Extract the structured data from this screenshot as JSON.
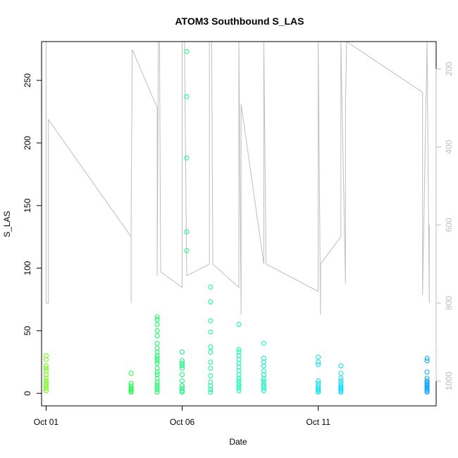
{
  "chart_data": {
    "type": "scatter",
    "title": "ATOM3 Southbound S_LAS",
    "xlabel": "Date",
    "ylabel": "S_LAS",
    "x_axis": {
      "type": "date",
      "range": [
        "2013-09-30T20:00",
        "2013-10-15T08:00"
      ],
      "ticks": [
        {
          "value": "2013-10-01",
          "label": "Oct 01"
        },
        {
          "value": "2013-10-06",
          "label": "Oct 06"
        },
        {
          "value": "2013-10-11",
          "label": "Oct 11"
        }
      ]
    },
    "y_axis": {
      "range": [
        -10,
        281
      ],
      "ticks": [
        0,
        50,
        100,
        150,
        200,
        250
      ]
    },
    "y2_axis": {
      "reversed": true,
      "range": [
        1063.5,
        130
      ],
      "ticks": [
        200,
        400,
        600,
        800,
        1000
      ],
      "color": "#bebebe"
    },
    "point_color_scale": [
      "#66ff00",
      "#00ff44",
      "#00ffaa",
      "#00ddff",
      "#0099ff"
    ],
    "grid": false,
    "legend": "none",
    "series": [
      {
        "kind": "points",
        "points": [
          {
            "x": "2013-10-01T00:00",
            "y": 30
          },
          {
            "x": "2013-10-01T00:00",
            "y": 27
          },
          {
            "x": "2013-10-01T00:00",
            "y": 22
          },
          {
            "x": "2013-10-01T00:00",
            "y": 20
          },
          {
            "x": "2013-10-01T00:00",
            "y": 18
          },
          {
            "x": "2013-10-01T00:00",
            "y": 15
          },
          {
            "x": "2013-10-01T00:00",
            "y": 12
          },
          {
            "x": "2013-10-01T00:00",
            "y": 10
          },
          {
            "x": "2013-10-01T00:00",
            "y": 8
          },
          {
            "x": "2013-10-01T00:00",
            "y": 6
          },
          {
            "x": "2013-10-01T00:00",
            "y": 4
          },
          {
            "x": "2013-10-01T00:00",
            "y": 2
          },
          {
            "x": "2013-10-04T03:00",
            "y": 16
          },
          {
            "x": "2013-10-04T03:00",
            "y": 8
          },
          {
            "x": "2013-10-04T03:00",
            "y": 6
          },
          {
            "x": "2013-10-04T03:00",
            "y": 4
          },
          {
            "x": "2013-10-04T03:00",
            "y": 3
          },
          {
            "x": "2013-10-04T03:00",
            "y": 2
          },
          {
            "x": "2013-10-04T03:00",
            "y": 1
          },
          {
            "x": "2013-10-05T02:00",
            "y": 61
          },
          {
            "x": "2013-10-05T02:00",
            "y": 59
          },
          {
            "x": "2013-10-05T02:00",
            "y": 55
          },
          {
            "x": "2013-10-05T02:00",
            "y": 50
          },
          {
            "x": "2013-10-05T02:00",
            "y": 46
          },
          {
            "x": "2013-10-05T02:00",
            "y": 40
          },
          {
            "x": "2013-10-05T02:00",
            "y": 36
          },
          {
            "x": "2013-10-05T02:00",
            "y": 33
          },
          {
            "x": "2013-10-05T02:00",
            "y": 30
          },
          {
            "x": "2013-10-05T02:00",
            "y": 28
          },
          {
            "x": "2013-10-05T02:00",
            "y": 26
          },
          {
            "x": "2013-10-05T02:00",
            "y": 24
          },
          {
            "x": "2013-10-05T02:00",
            "y": 20
          },
          {
            "x": "2013-10-05T02:00",
            "y": 17
          },
          {
            "x": "2013-10-05T02:00",
            "y": 15
          },
          {
            "x": "2013-10-05T02:00",
            "y": 12
          },
          {
            "x": "2013-10-05T02:00",
            "y": 9
          },
          {
            "x": "2013-10-05T02:00",
            "y": 7
          },
          {
            "x": "2013-10-05T02:00",
            "y": 5
          },
          {
            "x": "2013-10-05T02:00",
            "y": 3
          },
          {
            "x": "2013-10-05T02:00",
            "y": 1
          },
          {
            "x": "2013-10-06T00:00",
            "y": 33
          },
          {
            "x": "2013-10-06T00:00",
            "y": 26
          },
          {
            "x": "2013-10-06T00:00",
            "y": 24
          },
          {
            "x": "2013-10-06T00:00",
            "y": 22
          },
          {
            "x": "2013-10-06T00:00",
            "y": 20
          },
          {
            "x": "2013-10-06T00:00",
            "y": 15
          },
          {
            "x": "2013-10-06T00:00",
            "y": 10
          },
          {
            "x": "2013-10-06T00:00",
            "y": 6
          },
          {
            "x": "2013-10-06T00:00",
            "y": 4
          },
          {
            "x": "2013-10-06T00:00",
            "y": 2
          },
          {
            "x": "2013-10-06T00:00",
            "y": 1
          },
          {
            "x": "2013-10-06T04:00",
            "y": 273
          },
          {
            "x": "2013-10-06T04:00",
            "y": 237
          },
          {
            "x": "2013-10-06T04:00",
            "y": 188
          },
          {
            "x": "2013-10-06T04:00",
            "y": 129
          },
          {
            "x": "2013-10-06T04:00",
            "y": 114
          },
          {
            "x": "2013-10-07T01:00",
            "y": 85
          },
          {
            "x": "2013-10-07T01:00",
            "y": 73
          },
          {
            "x": "2013-10-07T01:00",
            "y": 58
          },
          {
            "x": "2013-10-07T01:00",
            "y": 49
          },
          {
            "x": "2013-10-07T01:00",
            "y": 37
          },
          {
            "x": "2013-10-07T01:00",
            "y": 33
          },
          {
            "x": "2013-10-07T01:00",
            "y": 25
          },
          {
            "x": "2013-10-07T01:00",
            "y": 20
          },
          {
            "x": "2013-10-07T01:00",
            "y": 14
          },
          {
            "x": "2013-10-07T01:00",
            "y": 9
          },
          {
            "x": "2013-10-07T01:00",
            "y": 6
          },
          {
            "x": "2013-10-07T01:00",
            "y": 3
          },
          {
            "x": "2013-10-07T01:00",
            "y": 1
          },
          {
            "x": "2013-10-08T02:00",
            "y": 35
          },
          {
            "x": "2013-10-08T02:00",
            "y": 33
          },
          {
            "x": "2013-10-08T02:00",
            "y": 30
          },
          {
            "x": "2013-10-08T02:00",
            "y": 27
          },
          {
            "x": "2013-10-08T02:00",
            "y": 24
          },
          {
            "x": "2013-10-08T02:00",
            "y": 21
          },
          {
            "x": "2013-10-08T02:00",
            "y": 18
          },
          {
            "x": "2013-10-08T02:00",
            "y": 15
          },
          {
            "x": "2013-10-08T02:00",
            "y": 12
          },
          {
            "x": "2013-10-08T02:00",
            "y": 10
          },
          {
            "x": "2013-10-08T02:00",
            "y": 8
          },
          {
            "x": "2013-10-08T02:00",
            "y": 6
          },
          {
            "x": "2013-10-08T02:00",
            "y": 4
          },
          {
            "x": "2013-10-08T02:00",
            "y": 2
          },
          {
            "x": "2013-10-08T02:00",
            "y": 55
          },
          {
            "x": "2013-10-09T00:00",
            "y": 40
          },
          {
            "x": "2013-10-09T00:00",
            "y": 28
          },
          {
            "x": "2013-10-09T00:00",
            "y": 25
          },
          {
            "x": "2013-10-09T00:00",
            "y": 22
          },
          {
            "x": "2013-10-09T00:00",
            "y": 18
          },
          {
            "x": "2013-10-09T00:00",
            "y": 15
          },
          {
            "x": "2013-10-09T00:00",
            "y": 12
          },
          {
            "x": "2013-10-09T00:00",
            "y": 10
          },
          {
            "x": "2013-10-09T00:00",
            "y": 8
          },
          {
            "x": "2013-10-09T00:00",
            "y": 6
          },
          {
            "x": "2013-10-09T00:00",
            "y": 4
          },
          {
            "x": "2013-10-09T00:00",
            "y": 2
          },
          {
            "x": "2013-10-11T00:00",
            "y": 29
          },
          {
            "x": "2013-10-11T00:00",
            "y": 25
          },
          {
            "x": "2013-10-11T00:00",
            "y": 23
          },
          {
            "x": "2013-10-11T00:00",
            "y": 10
          },
          {
            "x": "2013-10-11T00:00",
            "y": 8
          },
          {
            "x": "2013-10-11T00:00",
            "y": 6
          },
          {
            "x": "2013-10-11T00:00",
            "y": 4
          },
          {
            "x": "2013-10-11T00:00",
            "y": 3
          },
          {
            "x": "2013-10-11T00:00",
            "y": 2
          },
          {
            "x": "2013-10-11T00:00",
            "y": 1
          },
          {
            "x": "2013-10-11T20:00",
            "y": 22
          },
          {
            "x": "2013-10-11T20:00",
            "y": 16
          },
          {
            "x": "2013-10-11T20:00",
            "y": 12
          },
          {
            "x": "2013-10-11T20:00",
            "y": 10
          },
          {
            "x": "2013-10-11T20:00",
            "y": 8
          },
          {
            "x": "2013-10-11T20:00",
            "y": 6
          },
          {
            "x": "2013-10-11T20:00",
            "y": 5
          },
          {
            "x": "2013-10-11T20:00",
            "y": 4
          },
          {
            "x": "2013-10-11T20:00",
            "y": 3
          },
          {
            "x": "2013-10-11T20:00",
            "y": 2
          },
          {
            "x": "2013-10-11T20:00",
            "y": 1
          },
          {
            "x": "2013-10-15T00:00",
            "y": 28
          },
          {
            "x": "2013-10-15T00:00",
            "y": 26
          },
          {
            "x": "2013-10-15T00:00",
            "y": 17
          },
          {
            "x": "2013-10-15T00:00",
            "y": 12
          },
          {
            "x": "2013-10-15T00:00",
            "y": 10
          },
          {
            "x": "2013-10-15T00:00",
            "y": 9
          },
          {
            "x": "2013-10-15T00:00",
            "y": 8
          },
          {
            "x": "2013-10-15T00:00",
            "y": 7
          },
          {
            "x": "2013-10-15T00:00",
            "y": 6
          },
          {
            "x": "2013-10-15T00:00",
            "y": 5
          },
          {
            "x": "2013-10-15T00:00",
            "y": 4
          },
          {
            "x": "2013-10-15T00:00",
            "y": 3
          },
          {
            "x": "2013-10-15T00:00",
            "y": 2
          },
          {
            "x": "2013-10-15T00:00",
            "y": 1
          }
        ]
      },
      {
        "kind": "line",
        "axis": "y2",
        "color": "#bebebe",
        "points": [
          {
            "x": "2013-10-01T00:00",
            "y": 130
          },
          {
            "x": "2013-10-01T00:00",
            "y": 800
          },
          {
            "x": "2013-10-01T02:00",
            "y": 800
          },
          {
            "x": "2013-10-01T02:00",
            "y": 330
          },
          {
            "x": "2013-10-04T03:00",
            "y": 630
          },
          {
            "x": "2013-10-04T03:00",
            "y": 800
          },
          {
            "x": "2013-10-04T03:00",
            "y": 580
          },
          {
            "x": "2013-10-04T04:00",
            "y": 150
          },
          {
            "x": "2013-10-05T02:00",
            "y": 300
          },
          {
            "x": "2013-10-05T02:00",
            "y": 730
          },
          {
            "x": "2013-10-05T03:00",
            "y": 130
          },
          {
            "x": "2013-10-05T04:00",
            "y": 130
          },
          {
            "x": "2013-10-05T05:00",
            "y": 720
          },
          {
            "x": "2013-10-06T00:00",
            "y": 760
          },
          {
            "x": "2013-10-06T00:00",
            "y": 130
          },
          {
            "x": "2013-10-06T02:00",
            "y": 130
          },
          {
            "x": "2013-10-06T04:00",
            "y": 730
          },
          {
            "x": "2013-10-07T00:00",
            "y": 700
          },
          {
            "x": "2013-10-07T00:00",
            "y": 130
          },
          {
            "x": "2013-10-07T02:00",
            "y": 130
          },
          {
            "x": "2013-10-07T03:00",
            "y": 700
          },
          {
            "x": "2013-10-08T02:00",
            "y": 760
          },
          {
            "x": "2013-10-08T02:00",
            "y": 130
          },
          {
            "x": "2013-10-08T04:00",
            "y": 830
          },
          {
            "x": "2013-10-08T04:00",
            "y": 290
          },
          {
            "x": "2013-10-09T00:00",
            "y": 700
          },
          {
            "x": "2013-10-09T00:00",
            "y": 130
          },
          {
            "x": "2013-10-09T02:00",
            "y": 700
          },
          {
            "x": "2013-10-11T00:00",
            "y": 770
          },
          {
            "x": "2013-10-11T00:00",
            "y": 130
          },
          {
            "x": "2013-10-11T02:00",
            "y": 830
          },
          {
            "x": "2013-10-11T02:00",
            "y": 700
          },
          {
            "x": "2013-10-11T20:00",
            "y": 630
          },
          {
            "x": "2013-10-11T20:00",
            "y": 130
          },
          {
            "x": "2013-10-12T00:00",
            "y": 750
          },
          {
            "x": "2013-10-12T00:00",
            "y": 300
          },
          {
            "x": "2013-10-12T01:00",
            "y": 130
          },
          {
            "x": "2013-10-14T20:00",
            "y": 260
          },
          {
            "x": "2013-10-14T20:00",
            "y": 780
          },
          {
            "x": "2013-10-15T00:00",
            "y": 130
          },
          {
            "x": "2013-10-15T02:00",
            "y": 800
          },
          {
            "x": "2013-10-15T02:00",
            "y": 600
          }
        ]
      }
    ]
  }
}
